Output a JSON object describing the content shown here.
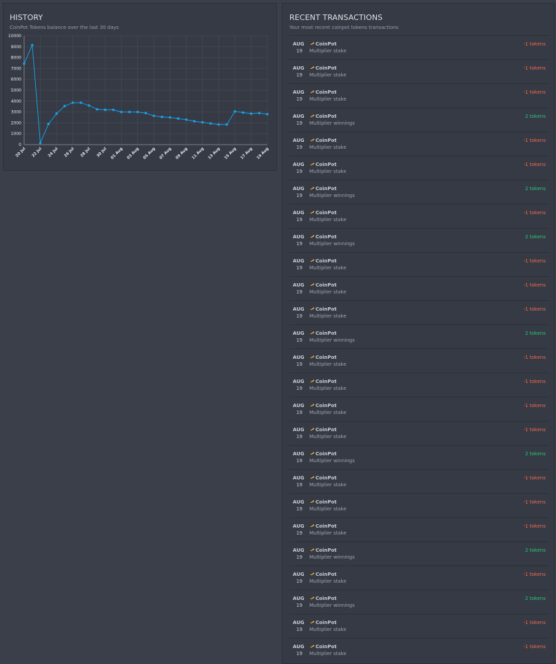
{
  "history": {
    "title": "HISTORY",
    "subtitle": "CoinPot Tokens balance over the last 30 days"
  },
  "transactions": {
    "title": "RECENT TRANSACTIONS",
    "subtitle": "Your most recent coinpot tokens transactions",
    "items": [
      {
        "month": "AUG",
        "day": "19",
        "source": "CoinPot",
        "desc": "Multiplier stake",
        "amount": "-1 tokens",
        "type": "neg"
      },
      {
        "month": "AUG",
        "day": "19",
        "source": "CoinPot",
        "desc": "Multiplier stake",
        "amount": "-1 tokens",
        "type": "neg"
      },
      {
        "month": "AUG",
        "day": "19",
        "source": "CoinPot",
        "desc": "Multiplier stake",
        "amount": "-1 tokens",
        "type": "neg"
      },
      {
        "month": "AUG",
        "day": "19",
        "source": "CoinPot",
        "desc": "Multiplier winnings",
        "amount": "2 tokens",
        "type": "pos"
      },
      {
        "month": "AUG",
        "day": "19",
        "source": "CoinPot",
        "desc": "Multiplier stake",
        "amount": "-1 tokens",
        "type": "neg"
      },
      {
        "month": "AUG",
        "day": "19",
        "source": "CoinPot",
        "desc": "Multiplier stake",
        "amount": "-1 tokens",
        "type": "neg"
      },
      {
        "month": "AUG",
        "day": "19",
        "source": "CoinPot",
        "desc": "Multiplier winnings",
        "amount": "2 tokens",
        "type": "pos"
      },
      {
        "month": "AUG",
        "day": "19",
        "source": "CoinPot",
        "desc": "Multiplier stake",
        "amount": "-1 tokens",
        "type": "neg"
      },
      {
        "month": "AUG",
        "day": "19",
        "source": "CoinPot",
        "desc": "Multiplier winnings",
        "amount": "2 tokens",
        "type": "pos"
      },
      {
        "month": "AUG",
        "day": "19",
        "source": "CoinPot",
        "desc": "Multiplier stake",
        "amount": "-1 tokens",
        "type": "neg"
      },
      {
        "month": "AUG",
        "day": "19",
        "source": "CoinPot",
        "desc": "Multiplier stake",
        "amount": "-1 tokens",
        "type": "neg"
      },
      {
        "month": "AUG",
        "day": "19",
        "source": "CoinPot",
        "desc": "Multiplier stake",
        "amount": "-1 tokens",
        "type": "neg"
      },
      {
        "month": "AUG",
        "day": "19",
        "source": "CoinPot",
        "desc": "Multiplier winnings",
        "amount": "2 tokens",
        "type": "pos"
      },
      {
        "month": "AUG",
        "day": "19",
        "source": "CoinPot",
        "desc": "Multiplier stake",
        "amount": "-1 tokens",
        "type": "neg"
      },
      {
        "month": "AUG",
        "day": "19",
        "source": "CoinPot",
        "desc": "Multiplier stake",
        "amount": "-1 tokens",
        "type": "neg"
      },
      {
        "month": "AUG",
        "day": "19",
        "source": "CoinPot",
        "desc": "Multiplier stake",
        "amount": "-1 tokens",
        "type": "neg"
      },
      {
        "month": "AUG",
        "day": "19",
        "source": "CoinPot",
        "desc": "Multiplier stake",
        "amount": "-1 tokens",
        "type": "neg"
      },
      {
        "month": "AUG",
        "day": "19",
        "source": "CoinPot",
        "desc": "Multiplier winnings",
        "amount": "2 tokens",
        "type": "pos"
      },
      {
        "month": "AUG",
        "day": "19",
        "source": "CoinPot",
        "desc": "Multiplier stake",
        "amount": "-1 tokens",
        "type": "neg"
      },
      {
        "month": "AUG",
        "day": "19",
        "source": "CoinPot",
        "desc": "Multiplier stake",
        "amount": "-1 tokens",
        "type": "neg"
      },
      {
        "month": "AUG",
        "day": "19",
        "source": "CoinPot",
        "desc": "Multiplier stake",
        "amount": "-1 tokens",
        "type": "neg"
      },
      {
        "month": "AUG",
        "day": "19",
        "source": "CoinPot",
        "desc": "Multiplier winnings",
        "amount": "2 tokens",
        "type": "pos"
      },
      {
        "month": "AUG",
        "day": "19",
        "source": "CoinPot",
        "desc": "Multiplier stake",
        "amount": "-1 tokens",
        "type": "neg"
      },
      {
        "month": "AUG",
        "day": "19",
        "source": "CoinPot",
        "desc": "Multiplier winnings",
        "amount": "2 tokens",
        "type": "pos"
      },
      {
        "month": "AUG",
        "day": "19",
        "source": "CoinPot",
        "desc": "Multiplier stake",
        "amount": "-1 tokens",
        "type": "neg"
      },
      {
        "month": "AUG",
        "day": "19",
        "source": "CoinPot",
        "desc": "Multiplier stake",
        "amount": "-1 tokens",
        "type": "neg"
      }
    ]
  },
  "colors": {
    "line": "#1a9fe6",
    "negative": "#f36b4e",
    "positive": "#2bc87a",
    "coin_icon": "#e8b53a"
  },
  "icons": {
    "coin": "coin-icon"
  },
  "chart_data": {
    "type": "line",
    "title": "",
    "xlabel": "",
    "ylabel": "",
    "ylim": [
      0,
      10000
    ],
    "yticks": [
      "0",
      "1000",
      "2000",
      "3000",
      "4000",
      "5000",
      "6000",
      "7000",
      "8000",
      "9000",
      "10000"
    ],
    "x": [
      "20 Jul",
      "21 Jul",
      "22 Jul",
      "23 Jul",
      "24 Jul",
      "25 Jul",
      "26 Jul",
      "27 Jul",
      "28 Jul",
      "29 Jul",
      "30 Jul",
      "31 Jul",
      "01 Aug",
      "02 Aug",
      "03 Aug",
      "04 Aug",
      "05 Aug",
      "06 Aug",
      "07 Aug",
      "08 Aug",
      "09 Aug",
      "10 Aug",
      "11 Aug",
      "12 Aug",
      "13 Aug",
      "14 Aug",
      "15 Aug",
      "16 Aug",
      "17 Aug",
      "18 Aug",
      "19 Aug"
    ],
    "xtick_labels": [
      "20 Jul",
      "22 Jul",
      "24 Jul",
      "26 Jul",
      "28 Jul",
      "30 Jul",
      "01 Aug",
      "03 Aug",
      "05 Aug",
      "07 Aug",
      "09 Aug",
      "11 Aug",
      "13 Aug",
      "15 Aug",
      "17 Aug",
      "19 Aug"
    ],
    "series": [
      {
        "values": [
          7450,
          9150,
          150,
          1900,
          2850,
          3550,
          3850,
          3850,
          3600,
          3250,
          3200,
          3200,
          3000,
          3000,
          3000,
          2900,
          2650,
          2550,
          2500,
          2400,
          2300,
          2150,
          2050,
          1950,
          1850,
          1850,
          3050,
          2950,
          2850,
          2900,
          2800
        ]
      }
    ],
    "grid": true
  }
}
